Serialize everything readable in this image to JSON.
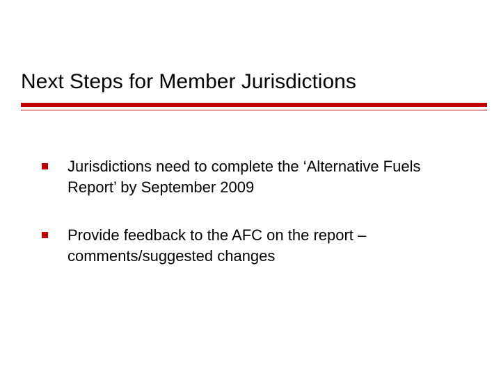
{
  "slide": {
    "title": "Next Steps for Member Jurisdictions",
    "bullets": [
      {
        "text": "Jurisdictions need to complete the ‘Alternative Fuels Report’ by September 2009"
      },
      {
        "text": "Provide feedback to the AFC on the report – comments/suggested changes"
      }
    ],
    "colors": {
      "accent": "#c00000",
      "text": "#000000",
      "background": "#ffffff"
    },
    "typography": {
      "title_fontsize": 30,
      "body_fontsize": 22,
      "font_family": "Verdana"
    }
  }
}
